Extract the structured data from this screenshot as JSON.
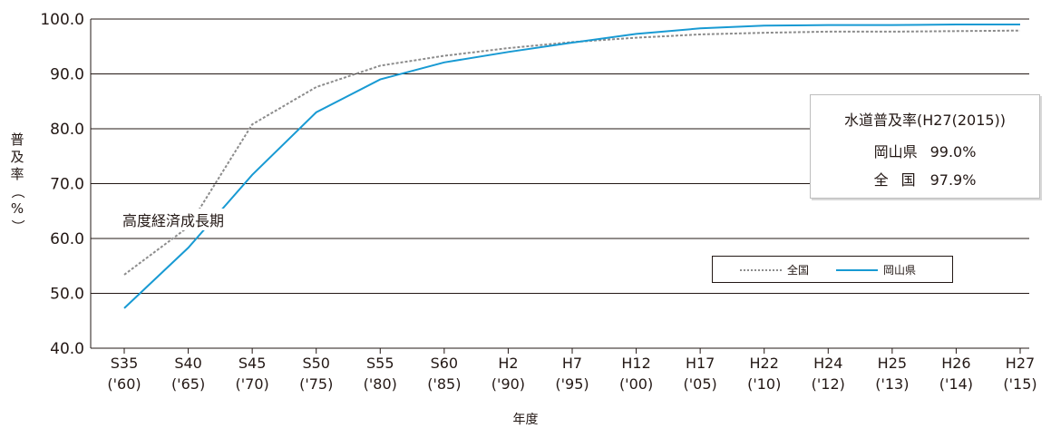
{
  "chart_data": {
    "type": "line",
    "xlabel": "年度",
    "ylabel": "普及率（%）",
    "ylim": [
      40,
      100
    ],
    "yticks": [
      "100.0",
      "90.0",
      "80.0",
      "70.0",
      "60.0",
      "50.0",
      "40.0"
    ],
    "ytick_values": [
      100,
      90,
      80,
      70,
      60,
      50,
      40
    ],
    "categories": [
      [
        "S35",
        "('60)"
      ],
      [
        "S40",
        "('65)"
      ],
      [
        "S45",
        "('70)"
      ],
      [
        "S50",
        "('75)"
      ],
      [
        "S55",
        "('80)"
      ],
      [
        "S60",
        "('85)"
      ],
      [
        "H2",
        "('90)"
      ],
      [
        "H7",
        "('95)"
      ],
      [
        "H12",
        "('00)"
      ],
      [
        "H17",
        "('05)"
      ],
      [
        "H22",
        "('10)"
      ],
      [
        "H24",
        "('12)"
      ],
      [
        "H25",
        "('13)"
      ],
      [
        "H26",
        "('14)"
      ],
      [
        "H27",
        "('15)"
      ]
    ],
    "series": [
      {
        "name": "全国",
        "style": "dashed",
        "color": "#8c8c8c",
        "values": [
          53.4,
          62.1,
          80.8,
          87.6,
          91.5,
          93.3,
          94.7,
          95.8,
          96.6,
          97.2,
          97.5,
          97.7,
          97.7,
          97.8,
          97.9
        ]
      },
      {
        "name": "岡山県",
        "style": "solid",
        "color": "#189ad3",
        "values": [
          47.3,
          58.3,
          71.6,
          83.0,
          89.0,
          92.1,
          94.0,
          95.7,
          97.3,
          98.3,
          98.8,
          98.9,
          98.9,
          99.0,
          99.0
        ]
      }
    ],
    "grid": true,
    "legend_position": "lower-right",
    "annotation": "高度経済成長期",
    "infobox": {
      "title": "水道普及率(H27(2015))",
      "rows": [
        {
          "label": "岡山県",
          "value": "99.0%"
        },
        {
          "label": "全国",
          "value": "97.9%"
        }
      ]
    }
  }
}
